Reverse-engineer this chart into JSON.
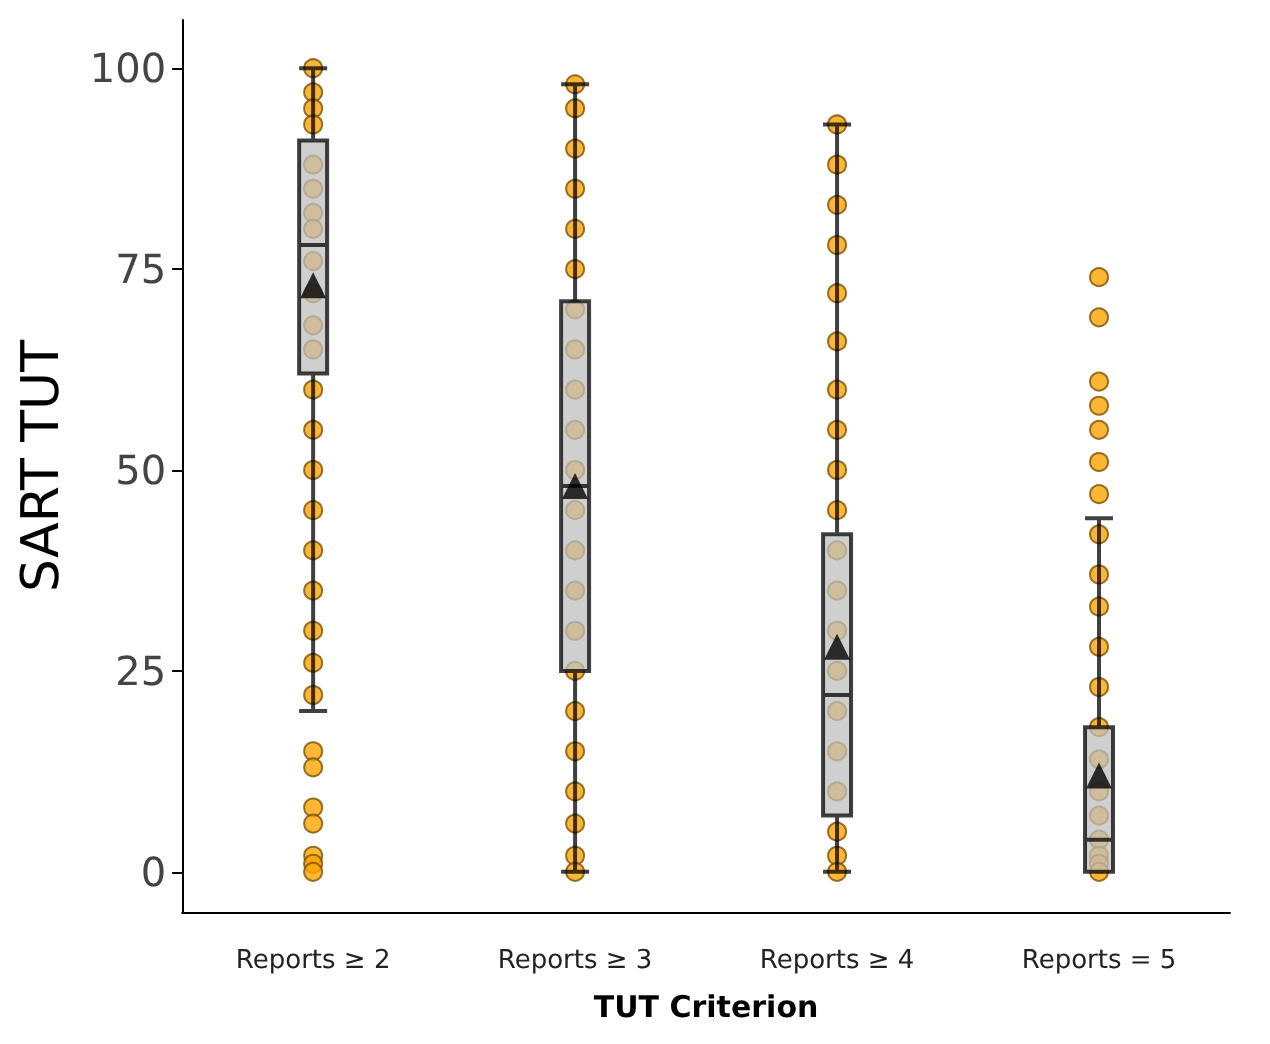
{
  "chart_data": {
    "type": "box",
    "xlabel": "TUT Criterion",
    "ylabel": "SART TUT",
    "categories": [
      "Reports ≥ 2",
      "Reports ≥ 3",
      "Reports ≥ 4",
      "Reports = 5"
    ],
    "boxes": [
      {
        "low": 20,
        "q1": 62,
        "median": 78,
        "q3": 91,
        "high": 100,
        "mean": 73
      },
      {
        "low": 0,
        "q1": 25,
        "median": 48,
        "q3": 71,
        "high": 98,
        "mean": 48
      },
      {
        "low": 0,
        "q1": 7,
        "median": 22,
        "q3": 42,
        "high": 93,
        "mean": 28
      },
      {
        "low": 0,
        "q1": 0,
        "median": 4,
        "q3": 18,
        "high": 44,
        "mean": 12
      }
    ],
    "color": "#bfbfbf",
    "series": [
      {
        "type": "scatter",
        "color": "#ffa500",
        "x": [
          "Reports ≥ 2",
          "Reports ≥ 2",
          "Reports ≥ 2",
          "Reports ≥ 2",
          "Reports ≥ 2",
          "Reports ≥ 2",
          "Reports ≥ 2",
          "Reports ≥ 2",
          "Reports ≥ 2",
          "Reports ≥ 2",
          "Reports ≥ 2",
          "Reports ≥ 2",
          "Reports ≥ 2",
          "Reports ≥ 2",
          "Reports ≥ 2",
          "Reports ≥ 2",
          "Reports ≥ 2",
          "Reports ≥ 2",
          "Reports ≥ 2",
          "Reports ≥ 2",
          "Reports ≥ 2",
          "Reports ≥ 2",
          "Reports ≥ 2",
          "Reports ≥ 2",
          "Reports ≥ 2",
          "Reports ≥ 2",
          "Reports ≥ 2",
          "Reports ≥ 2",
          "Reports ≥ 3",
          "Reports ≥ 3",
          "Reports ≥ 3",
          "Reports ≥ 3",
          "Reports ≥ 3",
          "Reports ≥ 3",
          "Reports ≥ 3",
          "Reports ≥ 3",
          "Reports ≥ 3",
          "Reports ≥ 3",
          "Reports ≥ 3",
          "Reports ≥ 3",
          "Reports ≥ 3",
          "Reports ≥ 3",
          "Reports ≥ 3",
          "Reports ≥ 3",
          "Reports ≥ 3",
          "Reports ≥ 3",
          "Reports ≥ 3",
          "Reports ≥ 3",
          "Reports ≥ 3",
          "Reports ≥ 3",
          "Reports ≥ 4",
          "Reports ≥ 4",
          "Reports ≥ 4",
          "Reports ≥ 4",
          "Reports ≥ 4",
          "Reports ≥ 4",
          "Reports ≥ 4",
          "Reports ≥ 4",
          "Reports ≥ 4",
          "Reports ≥ 4",
          "Reports ≥ 4",
          "Reports ≥ 4",
          "Reports ≥ 4",
          "Reports ≥ 4",
          "Reports ≥ 4",
          "Reports ≥ 4",
          "Reports ≥ 4",
          "Reports ≥ 4",
          "Reports ≥ 4",
          "Reports ≥ 4",
          "Reports = 5",
          "Reports = 5",
          "Reports = 5",
          "Reports = 5",
          "Reports = 5",
          "Reports = 5",
          "Reports = 5",
          "Reports = 5",
          "Reports = 5",
          "Reports = 5",
          "Reports = 5",
          "Reports = 5",
          "Reports = 5",
          "Reports = 5",
          "Reports = 5",
          "Reports = 5",
          "Reports = 5",
          "Reports = 5",
          "Reports = 5",
          "Reports = 5"
        ],
        "values": [
          100,
          97,
          95,
          93,
          88,
          85,
          82,
          80,
          76,
          72,
          68,
          65,
          60,
          55,
          50,
          45,
          40,
          35,
          30,
          26,
          22,
          15,
          13,
          8,
          6,
          2,
          1,
          0,
          98,
          95,
          90,
          85,
          80,
          75,
          70,
          65,
          60,
          55,
          50,
          45,
          40,
          35,
          30,
          25,
          20,
          15,
          10,
          6,
          2,
          0,
          93,
          88,
          83,
          78,
          72,
          66,
          60,
          55,
          50,
          45,
          40,
          35,
          30,
          25,
          20,
          15,
          10,
          5,
          2,
          0,
          74,
          69,
          61,
          58,
          55,
          51,
          47,
          42,
          37,
          33,
          28,
          23,
          18,
          14,
          10,
          7,
          4,
          2,
          1,
          0
        ]
      }
    ],
    "ylim": [
      -5,
      106
    ],
    "yticks": [
      0,
      25,
      50,
      75,
      100
    ],
    "grid": false
  }
}
